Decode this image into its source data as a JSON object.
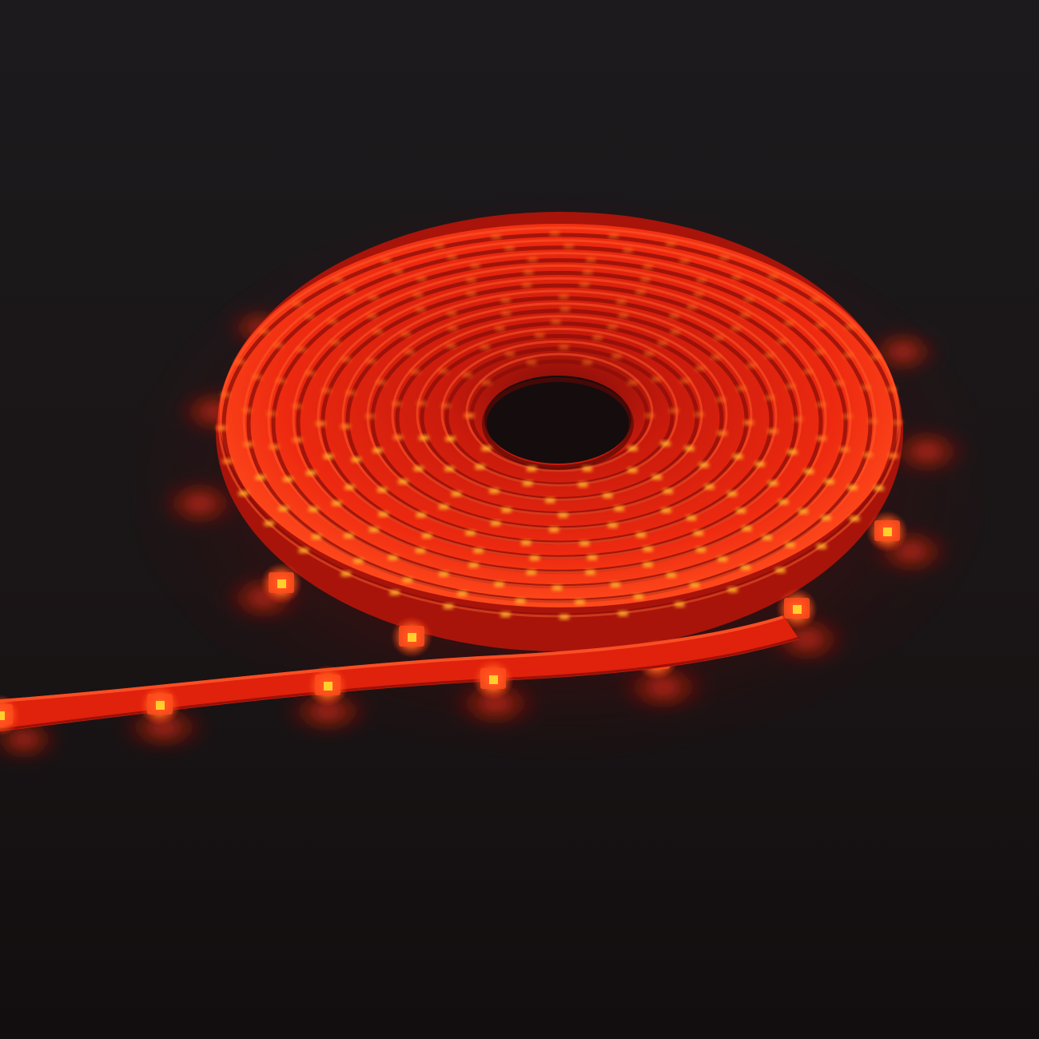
{
  "photo": {
    "subject": "led-strip-reel",
    "light_color": "red",
    "colors": {
      "background_top": "#1c1a1d",
      "background_bottom": "#120e0f",
      "glow": "#ff2a10",
      "strip": "#e0210c",
      "strip_highlight": "#ff5a2a",
      "led_chip": "#ffcf2e",
      "hole": "#140c0d"
    }
  }
}
